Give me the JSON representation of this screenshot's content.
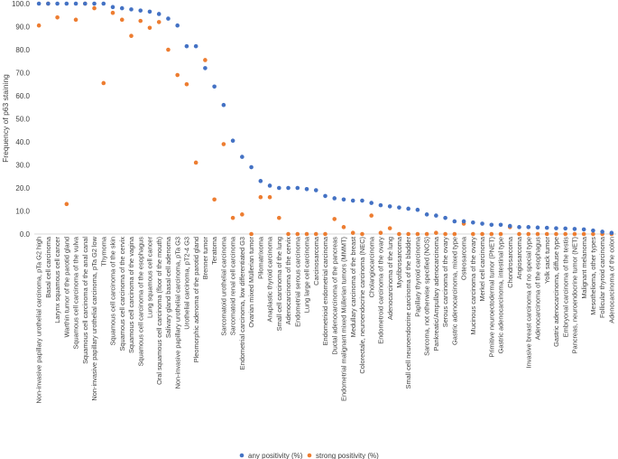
{
  "chart_data": {
    "type": "scatter",
    "title": "",
    "xlabel": "",
    "ylabel": "Frequency of p63 staining",
    "ylim": [
      0,
      100
    ],
    "yticks": [
      "0.0",
      "10.0",
      "20.0",
      "30.0",
      "40.0",
      "50.0",
      "60.0",
      "70.0",
      "80.0",
      "90.0",
      "100.0"
    ],
    "grid": false,
    "legend_position": "bottom",
    "categories": [
      "Non-invasive papillary urothelial carcinoma, pTa G2 high",
      "Basal cell carcinoma",
      "Larynx squamous cell cancer",
      "Warthin tumor of the parotid gland",
      "Squamous cell carcinoma of the vulva",
      "Squamous cell carcinoma of the anal canal",
      "Non-invasive papillary urothelial carcinoma, pTa G2 low",
      "Thymoma",
      "Squamous cell carcinoma of the skin",
      "Squamous cell carcinoma of the cervix",
      "Squamous cell carcinoma of the vagina",
      "Squamous cell carcinoma of the esophagus",
      "Lung squamous cell cancer",
      "Oral squamous cell carcinoma (floor of the mouth)",
      "Salivary gland basal cell adenoma",
      "Non-invasive papillary urothelial carcinoma, pTa G3",
      "Urothelial carcinoma, pT2-4 G3",
      "Pleomorphic adenoma of the parotid gland",
      "Brenner tumor",
      "Teratoma",
      "Sarcomatoid urothelial carcinoma",
      "Sarcomatoid renal cell carcinoma",
      "Endometrial carcinoma, low differentiated G3",
      "Ovarian mixed Müllerian tumor",
      "Pilomatrixoma",
      "Anaplastic thyroid carcinoma",
      "Small cell carcinoma of the lung",
      "Adenocarcinoma of the cervix",
      "Endometrial serous carcinoma",
      "Lung large cell carcinoma",
      "Carcinosarcoma",
      "Endometrioid endometrial carcinoma",
      "Ductal adenocarcinoma of the pancreas",
      "Endometrial malignant mixed Müllerian tumors (MMMT)",
      "Medullary carcinoma of the breast",
      "Colorectale, neuroendocrine carcinoma (NEC)",
      "Cholangiocarcinoma",
      "Endometroid carcinoma of the ovary",
      "Adenocarcinoma of the lung",
      "Myofibrosarcoma",
      "Small cell neuroendocrine carcinoma of the bladder",
      "Papillary thyroid carcinoma",
      "Sarcoma, not otherwise specified (NOS)",
      "Pankreatic/Ampullary adenocarcinoma",
      "Serous carcinoma of the ovary",
      "Gastric adenocarcinoma, mixed type",
      "Osteosarcoma",
      "Mucinous carcinoma of the ovary",
      "Merkel cell carcinoma",
      "Primitive neuroectodermal tumor (PNET)",
      "Gastric adenocarcinoma, intestinal type",
      "Chondrosarcoma",
      "Angiosarcoma",
      "Invasive breast carcinoma of no special type",
      "Adenocarcinoma of the esophagus",
      "Yolk sack tumor",
      "Gastric adenocarcinoma, diffuse type",
      "Embryonal carcinoma of the testis",
      "Pancreas, neuroendocrine tumor (NET)",
      "Malignant melanoma",
      "Mesothelioma, other types",
      "Follicular thyroid carcinoma",
      "Adenocarcinoma of the colon"
    ],
    "series": [
      {
        "name": "any positivity (%)",
        "color": "#4472c4",
        "values": [
          100,
          100,
          100,
          100,
          100,
          100,
          100,
          100,
          98.5,
          98,
          97.5,
          97,
          96.5,
          95.5,
          93.5,
          90.5,
          81.5,
          81.5,
          72,
          64,
          56,
          40.5,
          33.5,
          29,
          23,
          21,
          20,
          20,
          20,
          19.5,
          19,
          16.5,
          15.5,
          15,
          14.5,
          14.5,
          13.5,
          12.5,
          12,
          11.5,
          11,
          10.5,
          8.5,
          8,
          7,
          5.5,
          5.5,
          5,
          4.5,
          4,
          4,
          3.5,
          3,
          3,
          2.8,
          2.7,
          2.5,
          2.4,
          2.2,
          2,
          1.5,
          1,
          0.5
        ]
      },
      {
        "name": "strong positivity (%)",
        "color": "#ed7d31",
        "values": [
          90.5,
          100,
          94,
          13,
          93,
          100,
          98,
          65.5,
          96,
          93,
          86,
          92.5,
          89.5,
          92,
          80,
          69,
          65,
          31,
          75.5,
          15,
          39,
          7,
          8.5,
          0,
          16,
          16,
          7,
          0,
          0,
          0,
          0,
          0,
          6.5,
          3,
          0.5,
          0,
          8,
          0.5,
          2.5,
          0,
          0,
          0,
          0,
          0.5,
          0,
          0,
          4.5,
          0,
          0,
          0,
          0,
          3,
          0,
          0,
          0,
          0,
          0,
          0,
          0,
          0,
          0,
          0,
          0
        ]
      }
    ]
  }
}
